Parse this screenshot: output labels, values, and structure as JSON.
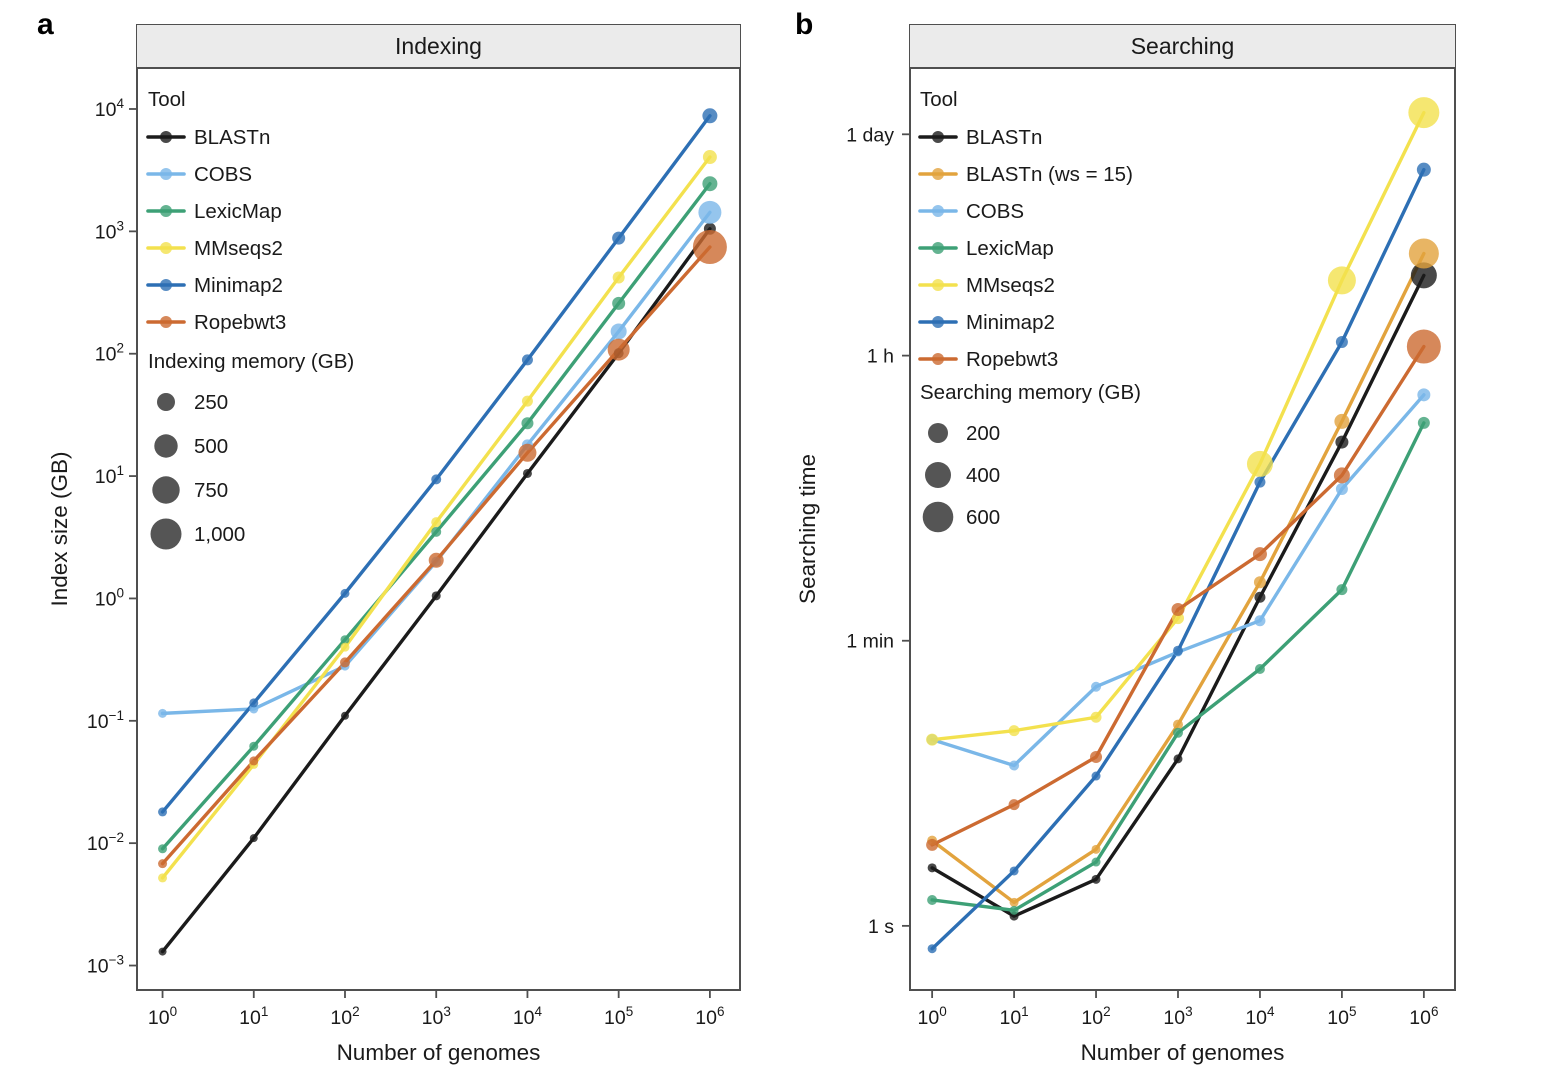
{
  "chart_data": [
    {
      "type": "line",
      "panel_label": "a",
      "title": "Indexing",
      "xlabel": "Number of genomes",
      "ylabel": "Index size (GB)",
      "y_unit": "GB",
      "x_values": [
        1,
        10,
        100,
        1000,
        10000,
        100000,
        1000000
      ],
      "x_tick_exponents": [
        0,
        1,
        2,
        3,
        4,
        5,
        6
      ],
      "y_tick_exponents": [
        4,
        3,
        2,
        1,
        0,
        -1,
        -2,
        -3
      ],
      "xlim_log10": [
        -0.28,
        6.33
      ],
      "ylim_log10": [
        -3.2,
        4.335
      ],
      "legend_title": "Tool",
      "size_legend": {
        "title": "Indexing memory (GB)",
        "items": [
          {
            "label": "250",
            "radius": 9
          },
          {
            "label": "500",
            "radius": 11.7
          },
          {
            "label": "750",
            "radius": 13.7
          },
          {
            "label": "1,000",
            "radius": 15.5
          }
        ]
      },
      "series": [
        {
          "name": "BLASTn",
          "color": "#1b1b1b",
          "values": [
            0.0013,
            0.011,
            0.11,
            1.05,
            10.5,
            101,
            1050
          ],
          "marker_radii": [
            4,
            4,
            4,
            4.5,
            4.5,
            5,
            6
          ]
        },
        {
          "name": "COBS",
          "color": "#7ab7e8",
          "values": [
            0.115,
            0.125,
            0.28,
            2.0,
            18,
            152,
            1430
          ],
          "marker_radii": [
            4.5,
            4.5,
            4.5,
            5,
            5.5,
            8,
            11.5
          ]
        },
        {
          "name": "LexicMap",
          "color": "#3da076",
          "values": [
            0.009,
            0.062,
            0.46,
            3.5,
            27,
            258,
            2450
          ],
          "marker_radii": [
            4.5,
            4.5,
            4.5,
            5,
            6,
            6.5,
            7.5
          ]
        },
        {
          "name": "MMseqs2",
          "color": "#f3e14e",
          "values": [
            0.0052,
            0.044,
            0.4,
            4.2,
            41,
            420,
            4050
          ],
          "marker_radii": [
            4.5,
            4.5,
            4.5,
            5,
            5.5,
            6,
            7
          ]
        },
        {
          "name": "Minimap2",
          "color": "#2d6fb4",
          "values": [
            0.018,
            0.14,
            1.1,
            9.4,
            89,
            880,
            8800
          ],
          "marker_radii": [
            4.5,
            4.5,
            4.5,
            5,
            5.5,
            6.5,
            7.5
          ]
        },
        {
          "name": "Ropebwt3",
          "color": "#cc6a31",
          "values": [
            0.0068,
            0.047,
            0.3,
            2.05,
            15.5,
            108,
            745
          ],
          "marker_radii": [
            4.5,
            4.5,
            5,
            7.5,
            9,
            11,
            17
          ]
        }
      ]
    },
    {
      "type": "line",
      "panel_label": "b",
      "title": "Searching",
      "xlabel": "Number of genomes",
      "ylabel": "Searching time",
      "y_unit": "seconds",
      "x_values": [
        1,
        10,
        100,
        1000,
        10000,
        100000,
        1000000
      ],
      "x_tick_exponents": [
        0,
        1,
        2,
        3,
        4,
        5,
        6
      ],
      "y_ticks": [
        {
          "label": "1 day",
          "seconds": 86400
        },
        {
          "label": "1 h",
          "seconds": 3600
        },
        {
          "label": "1 min",
          "seconds": 60
        },
        {
          "label": "1 s",
          "seconds": 1
        }
      ],
      "xlim_log10": [
        -0.27,
        6.38
      ],
      "ylim_log10": [
        -0.4,
        5.35
      ],
      "legend_title": "Tool",
      "size_legend": {
        "title": "Searching memory (GB)",
        "items": [
          {
            "label": "200",
            "radius": 10
          },
          {
            "label": "400",
            "radius": 13
          },
          {
            "label": "600",
            "radius": 15.3
          }
        ]
      },
      "series": [
        {
          "name": "BLASTn",
          "color": "#1b1b1b",
          "values": [
            2.3,
            1.15,
            1.95,
            11,
            112,
            1040,
            11400
          ],
          "marker_radii": [
            4.5,
            4.5,
            4.5,
            4.5,
            5.5,
            6.5,
            13
          ]
        },
        {
          "name": "BLASTn (ws = 15)",
          "color": "#e2a33d",
          "values": [
            3.4,
            1.4,
            3.0,
            18,
            139,
            1400,
            15600
          ],
          "marker_radii": [
            5,
            4.5,
            4.5,
            5,
            6,
            7.5,
            15
          ]
        },
        {
          "name": "COBS",
          "color": "#7ab7e8",
          "values": [
            14.5,
            10,
            31,
            51,
            80,
            530,
            2050
          ],
          "marker_radii": [
            5.5,
            5,
            5,
            4.5,
            5.5,
            6,
            6.5
          ]
        },
        {
          "name": "LexicMap",
          "color": "#3da076",
          "values": [
            1.45,
            1.25,
            2.5,
            16,
            40,
            125,
            1370
          ],
          "marker_radii": [
            5,
            4.5,
            4.5,
            5,
            5,
            5.5,
            6
          ]
        },
        {
          "name": "MMseqs2",
          "color": "#f3e14e",
          "values": [
            14.5,
            16.5,
            20,
            83,
            760,
            10600,
            118000
          ],
          "marker_radii": [
            6,
            5.5,
            5.5,
            6,
            13,
            14,
            15.5
          ]
        },
        {
          "name": "Minimap2",
          "color": "#2d6fb4",
          "values": [
            0.72,
            2.2,
            8.6,
            52,
            585,
            4380,
            52000
          ],
          "marker_radii": [
            4.5,
            4.5,
            4.5,
            5,
            5.5,
            6,
            7
          ]
        },
        {
          "name": "Ropebwt3",
          "color": "#cc6a31",
          "values": [
            3.2,
            5.7,
            11.3,
            94,
            208,
            645,
            4100
          ],
          "marker_radii": [
            6,
            5.5,
            6,
            6.5,
            7,
            8,
            17
          ]
        }
      ]
    }
  ]
}
